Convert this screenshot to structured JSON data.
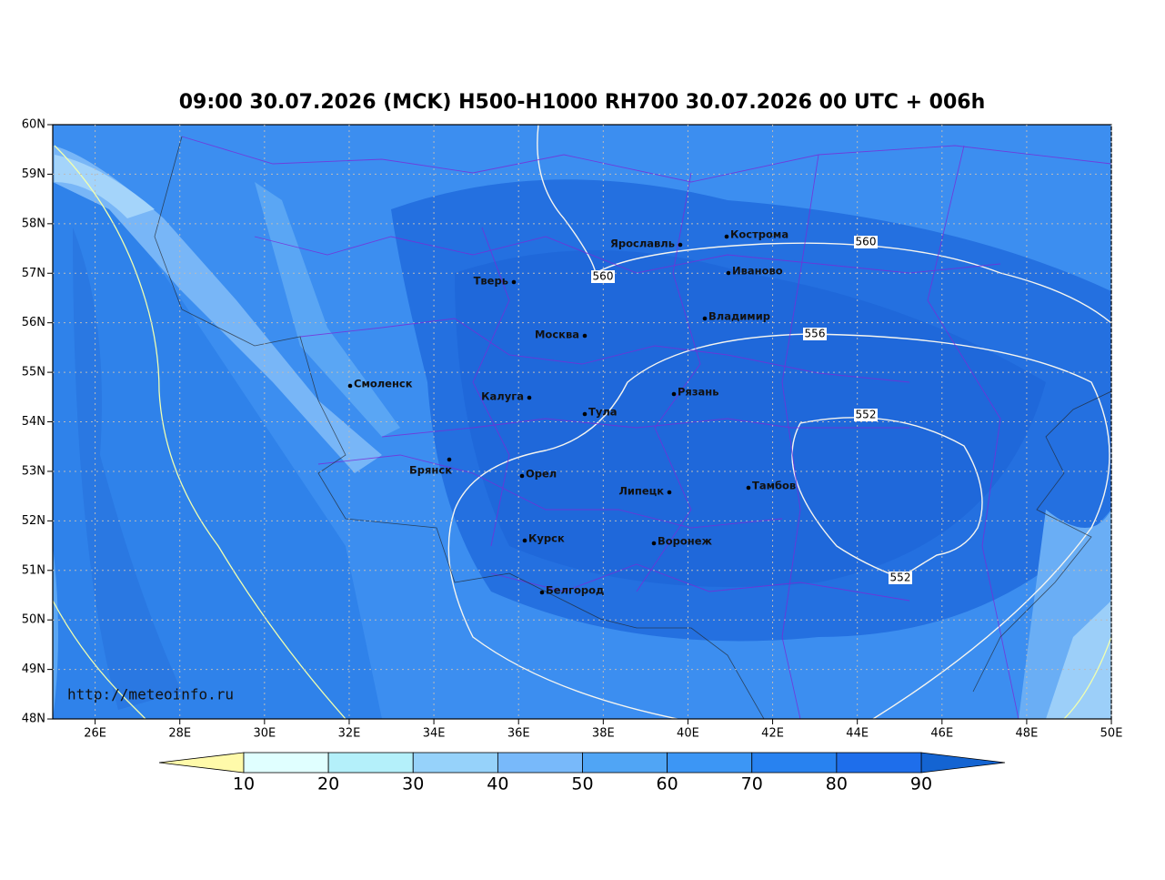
{
  "title": "09:00 30.07.2026 (MCK) H500-H1000 RH700 30.07.2026 00 UTC + 006h",
  "map": {
    "lat_labels": [
      "60N",
      "59N",
      "58N",
      "57N",
      "56N",
      "55N",
      "54N",
      "53N",
      "52N",
      "51N",
      "50N",
      "49N",
      "48N"
    ],
    "lon_labels": [
      "26E",
      "28E",
      "30E",
      "32E",
      "34E",
      "36E",
      "38E",
      "40E",
      "42E",
      "44E",
      "46E",
      "48E",
      "50E"
    ],
    "cities": [
      "Кострома",
      "Ярославль",
      "Иваново",
      "Тверь",
      "Владимир",
      "Москва",
      "Смоленск",
      "Калуга",
      "Рязань",
      "Тула",
      "Брянск",
      "Орел",
      "Липецк",
      "Тамбов",
      "Курск",
      "Воронеж",
      "Белгород"
    ],
    "contour_labels": [
      "560",
      "560",
      "556",
      "552",
      "552"
    ],
    "url": "http://meteoinfo.ru"
  },
  "colorbar": {
    "ticks": [
      10,
      20,
      30,
      40,
      50,
      60,
      70,
      80,
      90
    ]
  }
}
